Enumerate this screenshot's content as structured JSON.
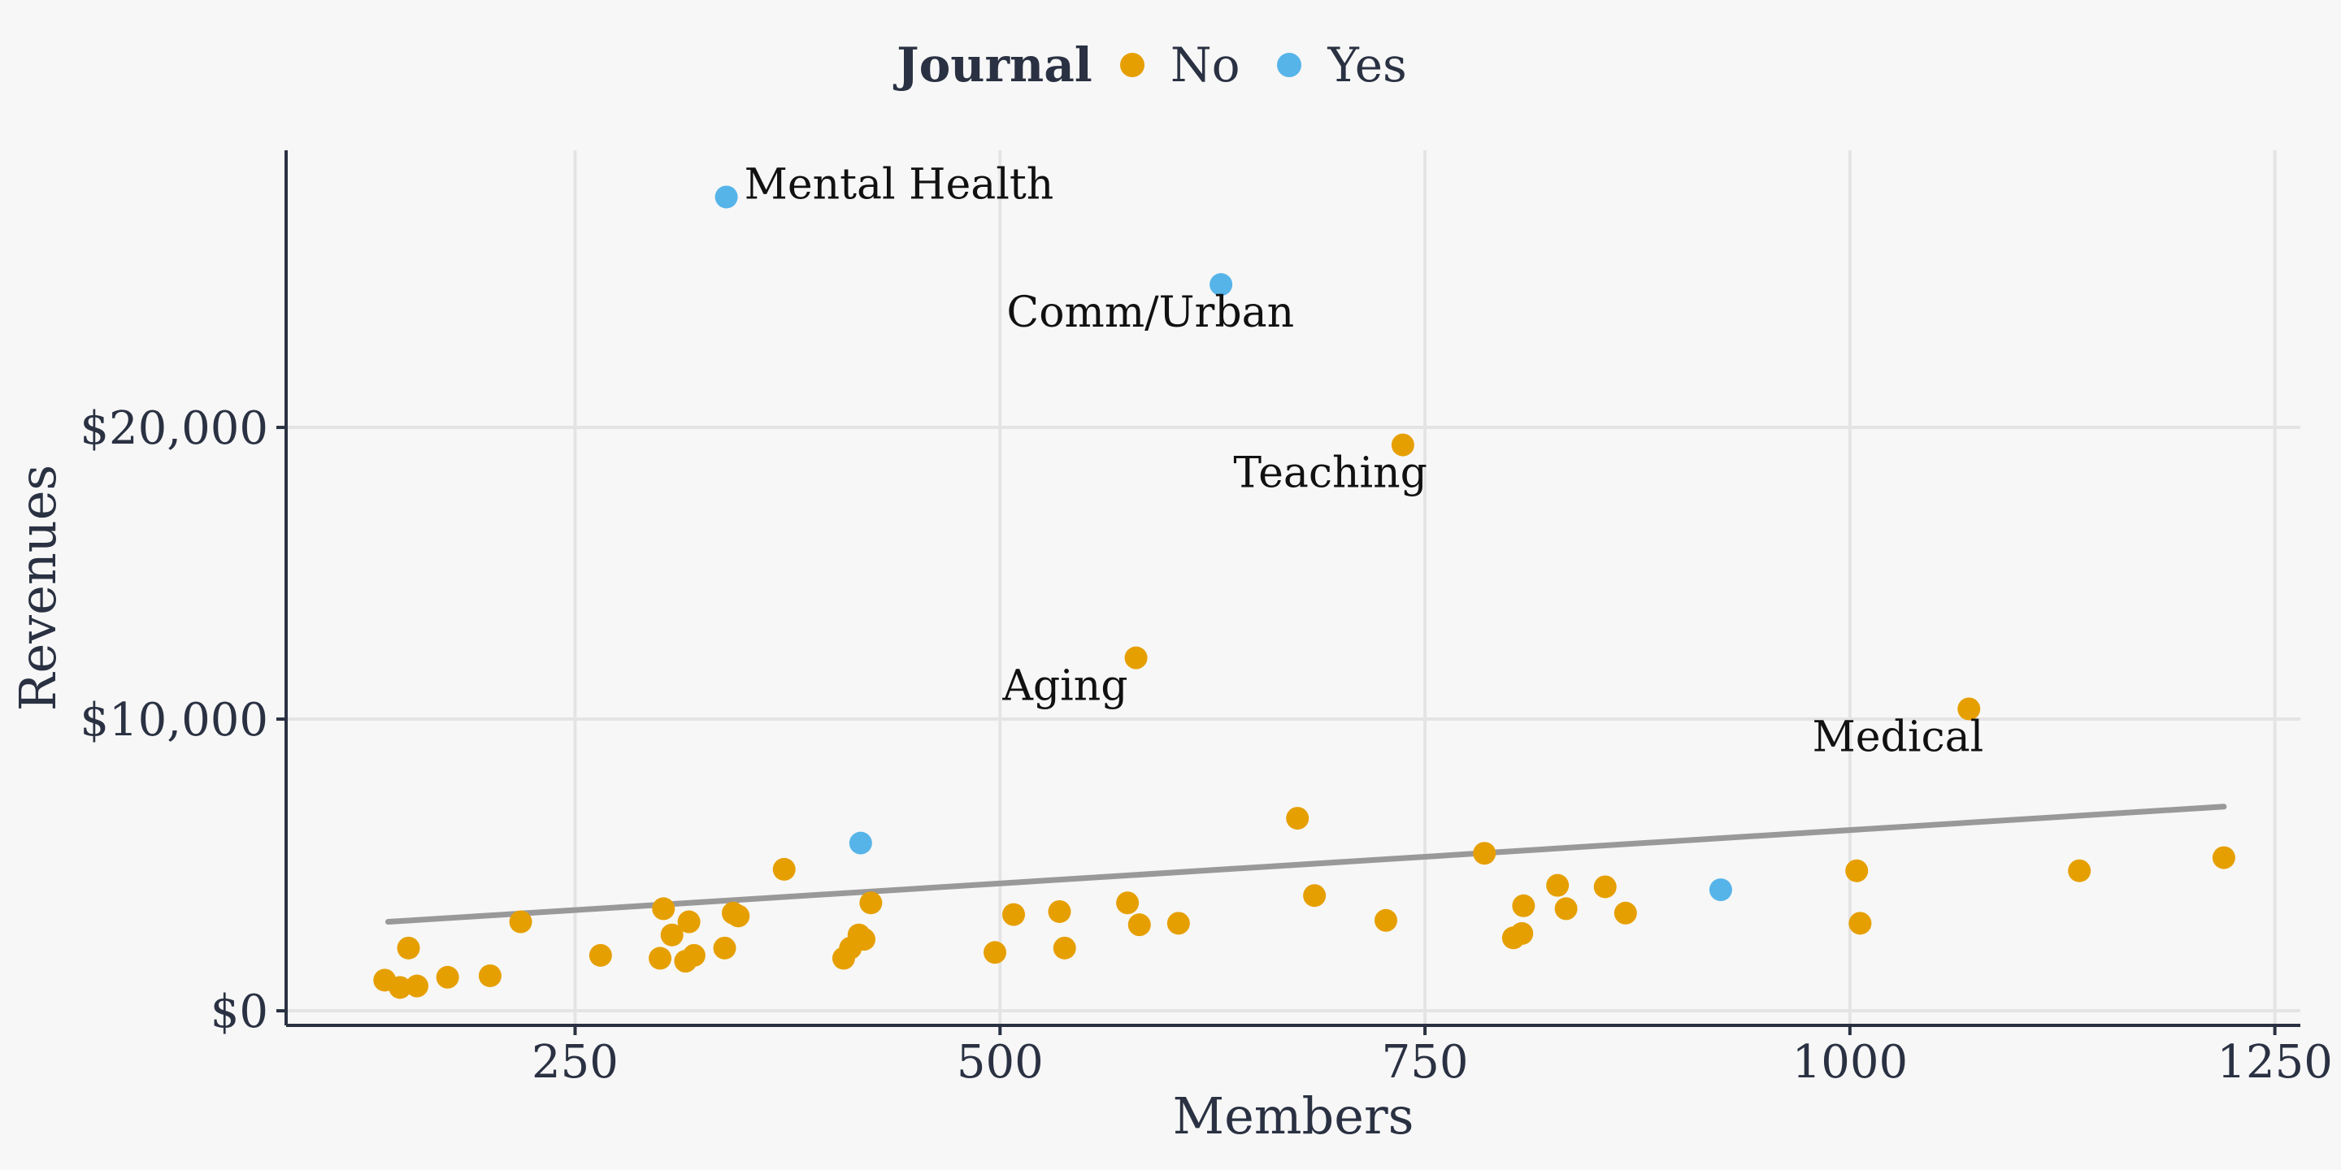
{
  "chart_data": {
    "type": "scatter",
    "title": "",
    "xlabel": "Members",
    "ylabel": "Revenues",
    "xlim": [
      80,
      1265
    ],
    "ylim": [
      -500,
      29500
    ],
    "x_ticks": [
      250,
      500,
      750,
      1000,
      1250
    ],
    "x_tick_labels": [
      "250",
      "500",
      "750",
      "1000",
      "1250"
    ],
    "y_ticks": [
      0,
      10000,
      20000
    ],
    "y_tick_labels": [
      "$0",
      "$10,000",
      "$20,000"
    ],
    "grid": true,
    "legend": {
      "title": "Journal",
      "position": "top",
      "entries": [
        {
          "label": "No",
          "color": "#e69f00"
        },
        {
          "label": "Yes",
          "color": "#56b4e9"
        }
      ]
    },
    "trend_line": {
      "x": [
        140,
        1220
      ],
      "y": [
        3050,
        7000
      ],
      "color": "#999999"
    },
    "series": [
      {
        "name": "No",
        "color": "#e69f00",
        "points": [
          {
            "x": 138,
            "y": 1050
          },
          {
            "x": 147,
            "y": 800
          },
          {
            "x": 152,
            "y": 2150
          },
          {
            "x": 157,
            "y": 850
          },
          {
            "x": 175,
            "y": 1150
          },
          {
            "x": 200,
            "y": 1200
          },
          {
            "x": 218,
            "y": 3050
          },
          {
            "x": 265,
            "y": 1900
          },
          {
            "x": 300,
            "y": 1800
          },
          {
            "x": 302,
            "y": 3500
          },
          {
            "x": 307,
            "y": 2600
          },
          {
            "x": 315,
            "y": 1700
          },
          {
            "x": 317,
            "y": 3050
          },
          {
            "x": 320,
            "y": 1900
          },
          {
            "x": 338,
            "y": 2150
          },
          {
            "x": 343,
            "y": 3350
          },
          {
            "x": 346,
            "y": 3250
          },
          {
            "x": 373,
            "y": 4850
          },
          {
            "x": 408,
            "y": 1800
          },
          {
            "x": 412,
            "y": 2150
          },
          {
            "x": 417,
            "y": 2600
          },
          {
            "x": 420,
            "y": 2450
          },
          {
            "x": 424,
            "y": 3700
          },
          {
            "x": 497,
            "y": 2000
          },
          {
            "x": 508,
            "y": 3300
          },
          {
            "x": 535,
            "y": 3400
          },
          {
            "x": 538,
            "y": 2150
          },
          {
            "x": 575,
            "y": 3700
          },
          {
            "x": 580,
            "y": 12100
          },
          {
            "x": 582,
            "y": 2950
          },
          {
            "x": 605,
            "y": 3000
          },
          {
            "x": 675,
            "y": 6600
          },
          {
            "x": 685,
            "y": 3950
          },
          {
            "x": 727,
            "y": 3100
          },
          {
            "x": 737,
            "y": 19400
          },
          {
            "x": 785,
            "y": 5400
          },
          {
            "x": 802,
            "y": 2500
          },
          {
            "x": 807,
            "y": 2650
          },
          {
            "x": 808,
            "y": 3600
          },
          {
            "x": 828,
            "y": 4300
          },
          {
            "x": 833,
            "y": 3500
          },
          {
            "x": 856,
            "y": 4250
          },
          {
            "x": 868,
            "y": 3350
          },
          {
            "x": 1004,
            "y": 4800
          },
          {
            "x": 1006,
            "y": 3000
          },
          {
            "x": 1070,
            "y": 10350
          },
          {
            "x": 1135,
            "y": 4800
          },
          {
            "x": 1220,
            "y": 5250
          }
        ]
      },
      {
        "name": "Yes",
        "color": "#56b4e9",
        "points": [
          {
            "x": 339,
            "y": 27900
          },
          {
            "x": 418,
            "y": 5750
          },
          {
            "x": 630,
            "y": 24900
          },
          {
            "x": 924,
            "y": 4150
          }
        ]
      }
    ],
    "annotations": [
      {
        "text": "Mental Health",
        "x": 339,
        "y": 27900
      },
      {
        "text": "Comm/Urban",
        "x": 630,
        "y": 24900
      },
      {
        "text": "Teaching",
        "x": 737,
        "y": 19400
      },
      {
        "text": "Aging",
        "x": 580,
        "y": 12100
      },
      {
        "text": "Medical",
        "x": 1070,
        "y": 10350
      }
    ]
  },
  "colors": {
    "background": "#f7f7f7",
    "grid": "#e4e4e4",
    "axis": "#2a3142",
    "text": "#2a3142"
  }
}
